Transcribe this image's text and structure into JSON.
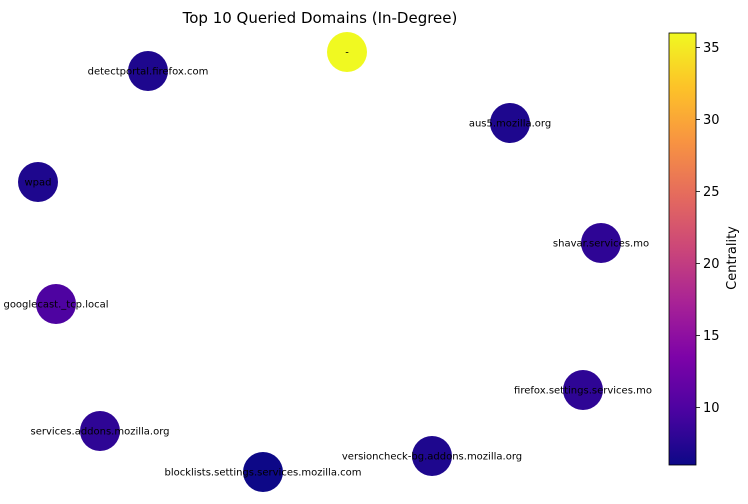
{
  "chart_data": {
    "type": "network",
    "title": "Top 10 Queried Domains (In-Degree)",
    "nodes": [
      {
        "label": "-",
        "value": 36
      },
      {
        "label": "detectportal.firefox.com",
        "value": 7
      },
      {
        "label": "aus5.mozilla.org",
        "value": 7
      },
      {
        "label": "wpad",
        "value": 7
      },
      {
        "label": "shavar.services.mo",
        "value": 8
      },
      {
        "label": "googlecast._tcp.local",
        "value": 10
      },
      {
        "label": "firefox.settings.services.mo",
        "value": 8
      },
      {
        "label": "services.addons.mozilla.org",
        "value": 8
      },
      {
        "label": "versioncheck-bg.addons.mozilla.org",
        "value": 7
      },
      {
        "label": "blocklists.settings.services.mozilla.com",
        "value": 6
      }
    ],
    "colorbar": {
      "label": "Centrality",
      "min": 6,
      "max": 36,
      "ticks": [
        "10",
        "15",
        "20",
        "25",
        "30",
        "35"
      ],
      "colormap": "plasma"
    }
  }
}
